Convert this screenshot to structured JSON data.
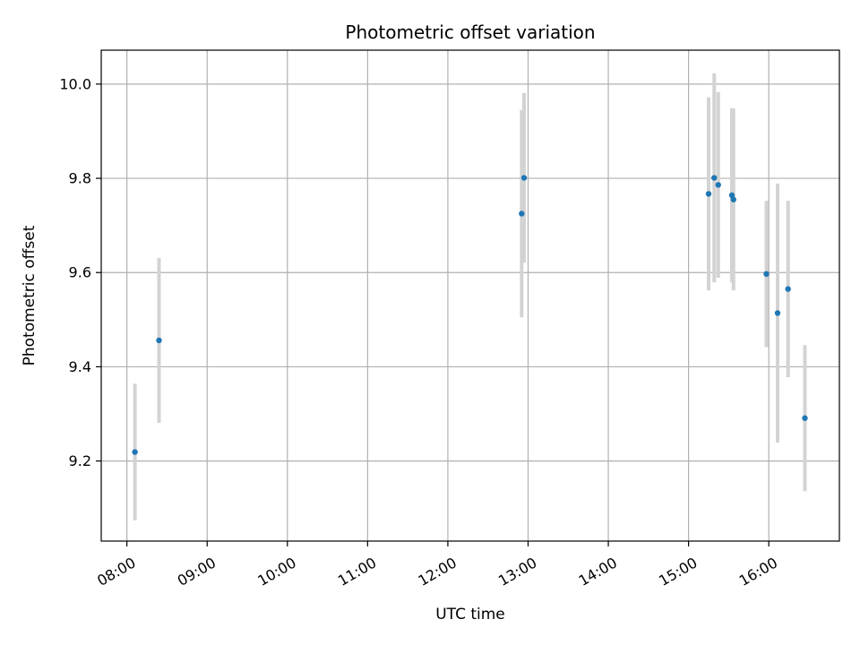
{
  "chart_data": {
    "type": "scatter",
    "title": "Photometric offset variation",
    "xlabel": "UTC time",
    "ylabel": "Photometric offset",
    "x_unit": "hours (UTC, decimal)",
    "xlim": [
      7.68,
      16.88
    ],
    "ylim": [
      9.03,
      10.072
    ],
    "x_ticks": [
      {
        "value": 8,
        "label": "08:00"
      },
      {
        "value": 9,
        "label": "09:00"
      },
      {
        "value": 10,
        "label": "10:00"
      },
      {
        "value": 11,
        "label": "11:00"
      },
      {
        "value": 12,
        "label": "12:00"
      },
      {
        "value": 13,
        "label": "13:00"
      },
      {
        "value": 14,
        "label": "14:00"
      },
      {
        "value": 15,
        "label": "15:00"
      },
      {
        "value": 16,
        "label": "16:00"
      }
    ],
    "y_ticks": [
      {
        "value": 9.2,
        "label": "9.2"
      },
      {
        "value": 9.4,
        "label": "9.4"
      },
      {
        "value": 9.6,
        "label": "9.6"
      },
      {
        "value": 9.8,
        "label": "9.8"
      },
      {
        "value": 10.0,
        "label": "10.0"
      }
    ],
    "grid": true,
    "marker_color": "#1f77b4",
    "errorbar_color": "#d3d3d3",
    "points": [
      {
        "x": 8.1,
        "y": 9.219,
        "yerr": 0.145
      },
      {
        "x": 8.4,
        "y": 9.456,
        "yerr": 0.175
      },
      {
        "x": 12.92,
        "y": 9.725,
        "yerr": 0.22
      },
      {
        "x": 12.95,
        "y": 9.801,
        "yerr": 0.18
      },
      {
        "x": 15.25,
        "y": 9.767,
        "yerr": 0.205
      },
      {
        "x": 15.32,
        "y": 9.801,
        "yerr": 0.222
      },
      {
        "x": 15.37,
        "y": 9.786,
        "yerr": 0.197
      },
      {
        "x": 15.54,
        "y": 9.764,
        "yerr": 0.185
      },
      {
        "x": 15.56,
        "y": 9.755,
        "yerr": 0.193
      },
      {
        "x": 15.97,
        "y": 9.597,
        "yerr": 0.155
      },
      {
        "x": 16.11,
        "y": 9.514,
        "yerr": 0.275
      },
      {
        "x": 16.24,
        "y": 9.565,
        "yerr": 0.187
      },
      {
        "x": 16.45,
        "y": 9.291,
        "yerr": 0.155
      }
    ]
  }
}
